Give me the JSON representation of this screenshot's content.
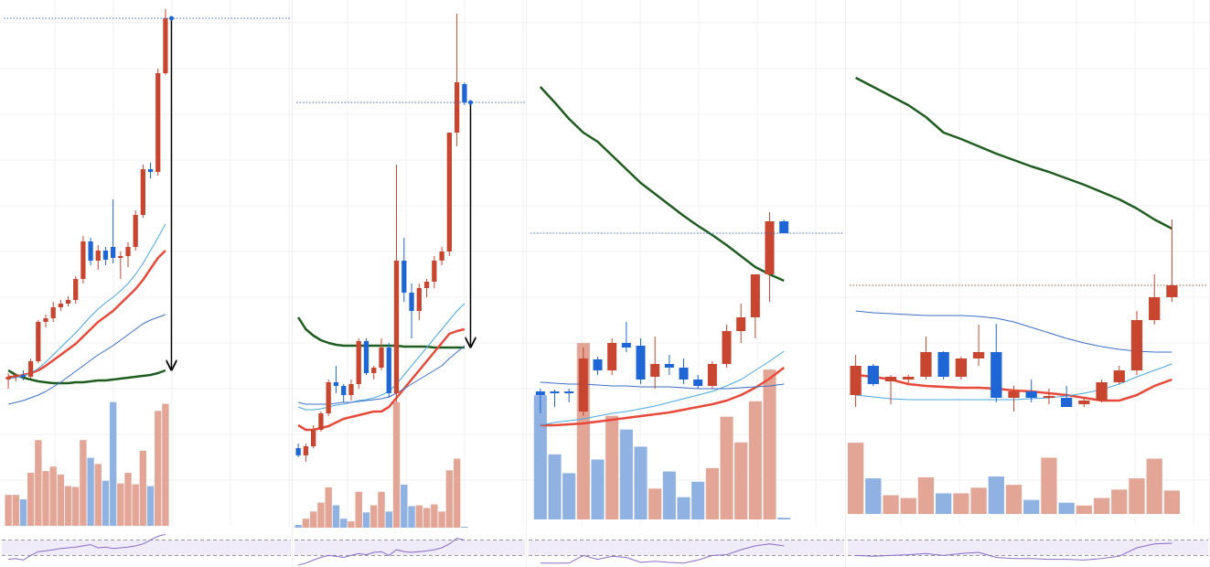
{
  "chart_data": [
    {
      "type": "candlestick",
      "ylim": [
        -125,
        450
      ],
      "volume_ylim": [
        0,
        150
      ],
      "up_color": "#c8462f",
      "down_color": "#1e66d6",
      "up_volume_color": "#e0a090",
      "down_volume_color": "#8aaee0",
      "last_price_line_color": "#3b6fc8",
      "arrow": true,
      "ohlc": [
        [
          35,
          42,
          25,
          38
        ],
        [
          38,
          42,
          33,
          40
        ],
        [
          40,
          45,
          34,
          38
        ],
        [
          38,
          58,
          36,
          55
        ],
        [
          55,
          100,
          53,
          98
        ],
        [
          98,
          106,
          92,
          102
        ],
        [
          102,
          120,
          98,
          114
        ],
        [
          114,
          122,
          110,
          118
        ],
        [
          118,
          126,
          115,
          122
        ],
        [
          122,
          148,
          118,
          145
        ],
        [
          145,
          192,
          140,
          186
        ],
        [
          186,
          190,
          160,
          165
        ],
        [
          165,
          182,
          155,
          176
        ],
        [
          176,
          180,
          160,
          166
        ],
        [
          180,
          232,
          162,
          168
        ],
        [
          168,
          175,
          145,
          170
        ],
        [
          170,
          185,
          158,
          180
        ],
        [
          180,
          220,
          176,
          215
        ],
        [
          215,
          270,
          212,
          265
        ],
        [
          265,
          272,
          255,
          262
        ],
        [
          262,
          375,
          258,
          370
        ],
        [
          370,
          440,
          368,
          430
        ]
      ],
      "volume": [
        35,
        35,
        30,
        60,
        97,
        62,
        67,
        58,
        45,
        44,
        97,
        77,
        70,
        51,
        140,
        48,
        60,
        47,
        85,
        45,
        130,
        138
      ],
      "moving_averages": [
        {
          "color": "#1f5c1f",
          "width": 2.5,
          "values": [
            45,
            40,
            37,
            35,
            33,
            32,
            31,
            31,
            31,
            32,
            32,
            33,
            34,
            34,
            35,
            36,
            37,
            38,
            39,
            40,
            42,
            45
          ]
        },
        {
          "color": "#e84a3a",
          "width": 2.5,
          "values": [
            38,
            38,
            40,
            42,
            45,
            50,
            56,
            62,
            68,
            74,
            82,
            90,
            98,
            104,
            110,
            118,
            126,
            134,
            144,
            156,
            168,
            176
          ]
        },
        {
          "color": "#4aa8e0",
          "width": 1,
          "values": [
            36,
            37,
            39,
            42,
            47,
            54,
            62,
            70,
            78,
            86,
            95,
            104,
            112,
            119,
            125,
            132,
            140,
            150,
            162,
            176,
            190,
            205
          ]
        },
        {
          "color": "#3b6fc8",
          "width": 1,
          "values": [
            8,
            10,
            12,
            15,
            18,
            22,
            27,
            32,
            38,
            44,
            50,
            56,
            62,
            67,
            72,
            78,
            84,
            90,
            96,
            100,
            103,
            106
          ]
        }
      ],
      "rsi": {
        "color": "#8a6cc8",
        "ylim": [
          0,
          100
        ],
        "levels": [
          30,
          70
        ],
        "values": [
          20,
          22,
          18,
          30,
          40,
          42,
          45,
          48,
          50,
          52,
          55,
          58,
          50,
          52,
          48,
          50,
          52,
          55,
          60,
          70,
          80,
          85
        ]
      }
    },
    {
      "type": "candlestick",
      "ylim": [
        -125,
        450
      ],
      "volume_ylim": [
        0,
        150
      ],
      "up_color": "#c8462f",
      "down_color": "#1e66d6",
      "up_volume_color": "#e0a090",
      "down_volume_color": "#8aaee0",
      "last_price_line_color": "#3b6fc8",
      "arrow": true,
      "ohlc": [
        [
          -40,
          -35,
          -50,
          -48
        ],
        [
          -48,
          -35,
          -55,
          -38
        ],
        [
          -38,
          -15,
          -40,
          -20
        ],
        [
          -20,
          0,
          -22,
          -2
        ],
        [
          -2,
          35,
          -5,
          32
        ],
        [
          32,
          50,
          20,
          28
        ],
        [
          28,
          30,
          10,
          18
        ],
        [
          18,
          35,
          12,
          30
        ],
        [
          30,
          80,
          25,
          77
        ],
        [
          77,
          80,
          40,
          42
        ],
        [
          42,
          50,
          35,
          48
        ],
        [
          48,
          80,
          45,
          70
        ],
        [
          70,
          75,
          15,
          20
        ],
        [
          20,
          270,
          10,
          165
        ],
        [
          165,
          190,
          120,
          130
        ],
        [
          130,
          140,
          80,
          110
        ],
        [
          110,
          140,
          100,
          135
        ],
        [
          135,
          145,
          125,
          142
        ],
        [
          142,
          170,
          135,
          165
        ],
        [
          165,
          180,
          160,
          175
        ],
        [
          175,
          305,
          170,
          305
        ],
        [
          305,
          435,
          290,
          360
        ],
        [
          358,
          360,
          335,
          338
        ]
      ],
      "volume": [
        3,
        10,
        18,
        28,
        45,
        25,
        10,
        7,
        40,
        17,
        25,
        40,
        18,
        140,
        48,
        24,
        25,
        22,
        26,
        18,
        64,
        77,
        1
      ],
      "moving_averages": [
        {
          "color": "#1f5c1f",
          "width": 2.5,
          "values": [
            103,
            90,
            83,
            78,
            75,
            73,
            72,
            72,
            72,
            72,
            72,
            72,
            72,
            72,
            71,
            71,
            71,
            71,
            70,
            70,
            70,
            70,
            70
          ]
        },
        {
          "color": "#e84a3a",
          "width": 2.5,
          "values": [
            -15,
            -20,
            -20,
            -18,
            -16,
            -12,
            -8,
            -6,
            -4,
            -2,
            0,
            0,
            5,
            15,
            25,
            35,
            45,
            55,
            65,
            75,
            85,
            88,
            90
          ]
        },
        {
          "color": "#4aa8e0",
          "width": 1,
          "values": [
            5,
            2,
            2,
            3,
            5,
            7,
            8,
            10,
            12,
            13,
            15,
            18,
            22,
            30,
            40,
            50,
            60,
            70,
            80,
            90,
            100,
            110,
            118
          ]
        },
        {
          "color": "#3b6fc8",
          "width": 1,
          "values": [
            10,
            8,
            8,
            8,
            8,
            9,
            10,
            10,
            11,
            12,
            13,
            14,
            16,
            20,
            25,
            30,
            35,
            40,
            45,
            50,
            58,
            65,
            72
          ]
        }
      ],
      "rsi": {
        "color": "#8a6cc8",
        "ylim": [
          0,
          100
        ],
        "levels": [
          30,
          70
        ],
        "values": [
          5,
          10,
          18,
          25,
          30,
          28,
          25,
          30,
          35,
          32,
          38,
          40,
          30,
          45,
          40,
          38,
          40,
          42,
          45,
          50,
          60,
          75,
          70
        ]
      }
    },
    {
      "type": "candlestick",
      "ylim": [
        -125,
        450
      ],
      "volume_ylim": [
        0,
        220
      ],
      "up_color": "#c8462f",
      "down_color": "#1e66d6",
      "up_volume_color": "#e0a090",
      "down_volume_color": "#8aaee0",
      "last_price_line_color": "#3b6fc8",
      "arrow": false,
      "ohlc": [
        [
          22,
          25,
          -2,
          18
        ],
        [
          22,
          24,
          5,
          20
        ],
        [
          22,
          25,
          10,
          20
        ],
        [
          0,
          70,
          -5,
          58
        ],
        [
          57,
          60,
          40,
          45
        ],
        [
          45,
          80,
          40,
          75
        ],
        [
          75,
          98,
          65,
          70
        ],
        [
          72,
          80,
          30,
          35
        ],
        [
          38,
          82,
          25,
          52
        ],
        [
          52,
          62,
          40,
          48
        ],
        [
          48,
          58,
          30,
          35
        ],
        [
          35,
          40,
          25,
          28
        ],
        [
          28,
          55,
          25,
          52
        ],
        [
          52,
          95,
          48,
          88
        ],
        [
          88,
          118,
          75,
          103
        ],
        [
          103,
          150,
          80,
          150
        ],
        [
          150,
          218,
          120,
          208
        ],
        [
          208,
          210,
          195,
          195
        ]
      ],
      "volume": [
        145,
        76,
        54,
        206,
        70,
        121,
        105,
        85,
        36,
        56,
        26,
        44,
        60,
        120,
        90,
        138,
        175,
        2
      ],
      "moving_averages": [
        {
          "color": "#1f5c1f",
          "width": 2.5,
          "values": [
            355,
            338,
            320,
            305,
            295,
            280,
            265,
            250,
            238,
            226,
            214,
            203,
            193,
            182,
            170,
            158,
            150,
            143
          ]
        },
        {
          "color": "#e84a3a",
          "width": 2.5,
          "values": [
            -15,
            -15,
            -14,
            -13,
            -11,
            -9,
            -7,
            -5,
            -3,
            -1,
            2,
            5,
            8,
            12,
            18,
            26,
            36,
            48
          ]
        },
        {
          "color": "#4aa8e0",
          "width": 1,
          "values": [
            -15,
            -12,
            -10,
            -8,
            -5,
            -2,
            0,
            3,
            6,
            10,
            14,
            18,
            22,
            28,
            35,
            45,
            55,
            66
          ]
        },
        {
          "color": "#3b6fc8",
          "width": 1,
          "values": [
            32,
            31,
            30,
            30,
            29,
            28,
            28,
            27,
            27,
            27,
            26,
            25,
            25,
            25,
            26,
            27,
            28,
            30
          ]
        }
      ],
      "rsi": {
        "color": "#8a6cc8",
        "ylim": [
          0,
          100
        ],
        "levels": [
          30,
          70
        ],
        "values": [
          10,
          10,
          10,
          30,
          20,
          28,
          25,
          12,
          15,
          12,
          10,
          18,
          30,
          32,
          45,
          55,
          60,
          55
        ]
      }
    },
    {
      "type": "candlestick",
      "ylim": [
        -125,
        450
      ],
      "volume_ylim": [
        0,
        80
      ],
      "up_color": "#c8462f",
      "down_color": "#1e66d6",
      "up_volume_color": "#e0a090",
      "down_volume_color": "#8aaee0",
      "last_price_line_color": "#a0522d",
      "arrow": false,
      "ohlc": [
        [
          18,
          62,
          5,
          50
        ],
        [
          50,
          52,
          28,
          30
        ],
        [
          33,
          40,
          8,
          38
        ],
        [
          35,
          40,
          30,
          38
        ],
        [
          38,
          82,
          35,
          65
        ],
        [
          65,
          66,
          35,
          38
        ],
        [
          38,
          60,
          35,
          58
        ],
        [
          58,
          95,
          50,
          65
        ],
        [
          65,
          96,
          10,
          15
        ],
        [
          15,
          28,
          0,
          22
        ],
        [
          22,
          35,
          10,
          15
        ],
        [
          15,
          25,
          8,
          17
        ],
        [
          15,
          28,
          5,
          5
        ],
        [
          8,
          15,
          5,
          12
        ],
        [
          12,
          35,
          10,
          32
        ],
        [
          32,
          50,
          30,
          45
        ],
        [
          45,
          110,
          40,
          100
        ],
        [
          100,
          150,
          95,
          125
        ],
        [
          125,
          210,
          120,
          138
        ]
      ],
      "volume": [
        76,
        38,
        20,
        17,
        39,
        22,
        22,
        28,
        40,
        31,
        15,
        60,
        12,
        9,
        17,
        26,
        38,
        59,
        25
      ],
      "moving_averages": [
        {
          "color": "#1f5c1f",
          "width": 2.5,
          "values": [
            365,
            355,
            345,
            335,
            322,
            305,
            298,
            290,
            282,
            275,
            268,
            262,
            255,
            248,
            240,
            232,
            222,
            210,
            200
          ]
        },
        {
          "color": "#3b6fc8",
          "width": 1,
          "values": [
            110,
            108,
            107,
            106,
            105,
            105,
            105,
            104,
            102,
            98,
            92,
            86,
            80,
            75,
            71,
            68,
            66,
            65,
            65
          ]
        },
        {
          "color": "#e84a3a",
          "width": 2.5,
          "values": [
            40,
            38,
            35,
            30,
            28,
            27,
            26,
            26,
            25,
            23,
            22,
            20,
            18,
            15,
            12,
            12,
            18,
            28,
            35
          ]
        },
        {
          "color": "#4aa8e0",
          "width": 1,
          "values": [
            18,
            16,
            14,
            13,
            13,
            13,
            13,
            13,
            13,
            13,
            14,
            15,
            17,
            20,
            24,
            30,
            38,
            45,
            52
          ]
        }
      ],
      "rsi": {
        "color": "#8a6cc8",
        "ylim": [
          0,
          100
        ],
        "levels": [
          30,
          70
        ],
        "values": [
          30,
          28,
          30,
          32,
          35,
          30,
          35,
          38,
          25,
          22,
          22,
          20,
          20,
          18,
          22,
          28,
          50,
          60,
          62
        ]
      }
    }
  ]
}
